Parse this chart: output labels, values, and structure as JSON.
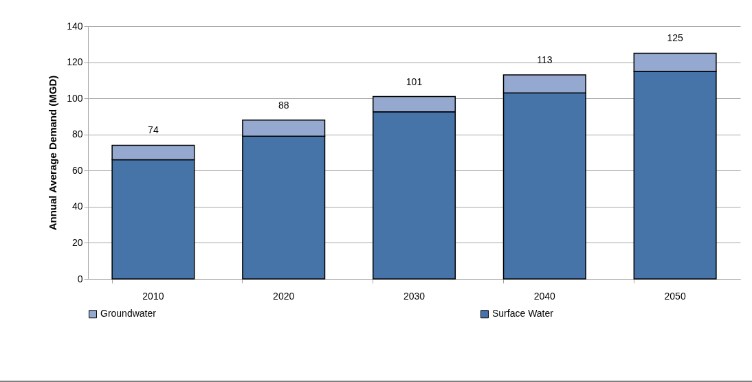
{
  "chart_data": {
    "type": "bar",
    "stacked": true,
    "ylabel": "Annual Average Demand (MGD)",
    "categories": [
      "2010",
      "2020",
      "2030",
      "2040",
      "2050"
    ],
    "series": [
      {
        "name": "Surface Water",
        "color": "#4674a8",
        "values": [
          66,
          79,
          92.5,
          103,
          115
        ]
      },
      {
        "name": "Groundwater",
        "color": "#95a9d0",
        "values": [
          8,
          9,
          8.5,
          10,
          10
        ]
      }
    ],
    "totals": [
      "74",
      "88",
      "101",
      "113",
      "125"
    ],
    "ylim": [
      0,
      140
    ],
    "yticks": [
      0,
      20,
      40,
      60,
      80,
      100,
      120,
      140
    ],
    "grid": "y",
    "legend": "bottom"
  }
}
